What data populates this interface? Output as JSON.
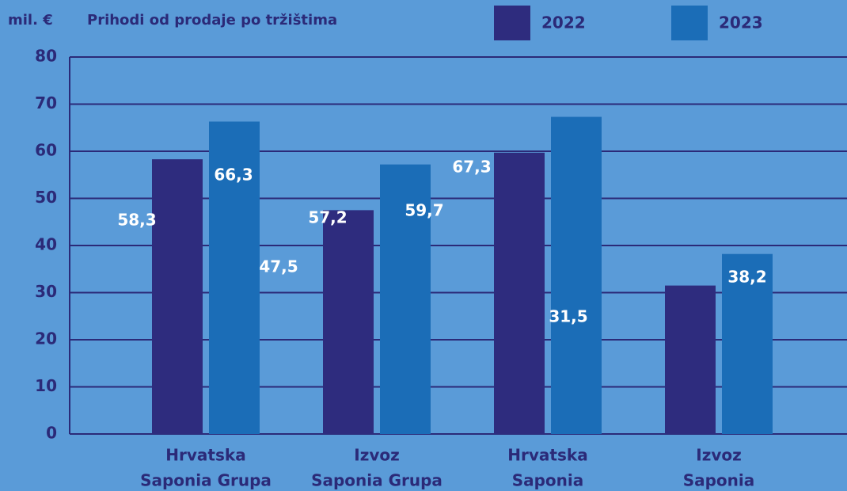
{
  "chart_data": {
    "type": "bar",
    "unit_label": "mil. €",
    "title": "Prihodi od prodaje po tržištima",
    "categories": [
      [
        "Hrvatska",
        "Saponia Grupa"
      ],
      [
        "Izvoz",
        "Saponia Grupa"
      ],
      [
        "Hrvatska",
        "Saponia"
      ],
      [
        "Izvoz",
        "Saponia"
      ]
    ],
    "series": [
      {
        "name": "2022",
        "color": "#2e2c7e",
        "values": [
          58.3,
          47.5,
          59.7,
          31.5
        ],
        "value_labels": [
          "58,3",
          "47,5",
          "59,7",
          "31,5"
        ]
      },
      {
        "name": "2023",
        "color": "#1b6db7",
        "values": [
          66.3,
          57.2,
          67.3,
          38.2
        ],
        "value_labels": [
          "66,3",
          "57,2",
          "67,3",
          "38,2"
        ]
      }
    ],
    "ylim": [
      0,
      80
    ],
    "yticks": [
      0,
      10,
      20,
      30,
      40,
      50,
      60,
      70,
      80
    ],
    "grid": true
  }
}
